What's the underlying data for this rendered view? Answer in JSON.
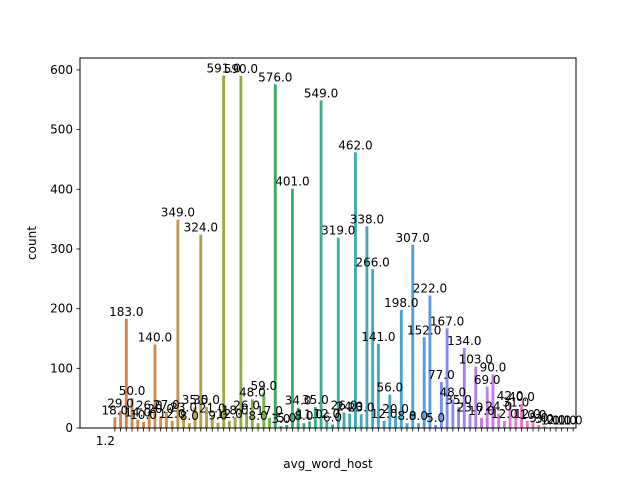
{
  "chart_data": {
    "type": "bar",
    "xlabel": "avg_word_host",
    "ylabel": "count",
    "ylim": [
      0,
      620
    ],
    "yticks": [
      0,
      100,
      200,
      300,
      400,
      500,
      600
    ],
    "x_first_tick_label": "1.2",
    "grid": false,
    "legend": "none",
    "bars": [
      {
        "value": 18.0,
        "label": "18.0",
        "color": "#df7b4f"
      },
      {
        "value": 29.0,
        "label": "29.0",
        "color": "#de7d4a"
      },
      {
        "value": 183.0,
        "label": "183.0",
        "color": "#d9804a"
      },
      {
        "value": 50.0,
        "label": "50.0",
        "color": "#d6834a"
      },
      {
        "value": 14.0,
        "label": "14.0",
        "color": "#d4874a"
      },
      {
        "value": 10.0,
        "label": "10.0",
        "color": "#d1894a"
      },
      {
        "value": 26.0,
        "label": "26.0",
        "color": "#ce8b49"
      },
      {
        "value": 140.0,
        "label": "140.0",
        "color": "#cc8e49"
      },
      {
        "value": 20.0,
        "label": "20.0",
        "color": "#c99049"
      },
      {
        "value": 27.0,
        "label": "27.0",
        "color": "#c69349"
      },
      {
        "value": 12.0,
        "label": "12.0",
        "color": "#c39548"
      },
      {
        "value": 349.0,
        "label": "349.0",
        "color": "#c29748"
      },
      {
        "value": 23.0,
        "label": "23.0",
        "color": "#bf9948"
      },
      {
        "value": 8.0,
        "label": "8.0",
        "color": "#bc9a48"
      },
      {
        "value": 35.0,
        "label": "35.0",
        "color": "#b99c47"
      },
      {
        "value": 324.0,
        "label": "324.0",
        "color": "#b59e47"
      },
      {
        "value": 35.0,
        "label": "35.0",
        "color": "#b2a047"
      },
      {
        "value": 21.0,
        "label": "21.0",
        "color": "#afa147"
      },
      {
        "value": 9.0,
        "label": "9.0",
        "color": "#aba247"
      },
      {
        "value": 591.0,
        "label": "591.0",
        "color": "#a3a446"
      },
      {
        "value": 12.0,
        "label": "12.0",
        "color": "#a0a646"
      },
      {
        "value": 18.0,
        "label": "18.0",
        "color": "#9ca846"
      },
      {
        "value": 590.0,
        "label": "590.0",
        "color": "#8fac45"
      },
      {
        "value": 26.0,
        "label": "26.0",
        "color": "#8bad45"
      },
      {
        "value": 48.0,
        "label": "48.0",
        "color": "#86ae45"
      },
      {
        "value": 8.0,
        "label": "8.0",
        "color": "#80af45"
      },
      {
        "value": 59.0,
        "label": "59.0",
        "color": "#79b145"
      },
      {
        "value": 17.0,
        "label": "17.0",
        "color": "#72b245"
      },
      {
        "value": 576.0,
        "label": "576.0",
        "color": "#3aac5f"
      },
      {
        "value": 3.0,
        "label": "3.0",
        "color": "#3aad66"
      },
      {
        "value": 5.0,
        "label": "5.0",
        "color": "#3aad6c"
      },
      {
        "value": 401.0,
        "label": "401.0",
        "color": "#3aad74"
      },
      {
        "value": 34.0,
        "label": "34.0",
        "color": "#3aad7a"
      },
      {
        "value": 8.0,
        "label": "8.0",
        "color": "#3aad80"
      },
      {
        "value": 11.0,
        "label": "11.0",
        "color": "#3aad86"
      },
      {
        "value": 35.0,
        "label": "35.0",
        "color": "#3bad8c"
      },
      {
        "value": 549.0,
        "label": "549.0",
        "color": "#3bad92"
      },
      {
        "value": 12.0,
        "label": "12.0",
        "color": "#3bad98"
      },
      {
        "value": 6.0,
        "label": "6.0",
        "color": "#3cae9d"
      },
      {
        "value": 319.0,
        "label": "319.0",
        "color": "#3cada1"
      },
      {
        "value": 26.0,
        "label": "26.0",
        "color": "#3dada5"
      },
      {
        "value": 24.0,
        "label": "24.0",
        "color": "#3eadaa"
      },
      {
        "value": 462.0,
        "label": "462.0",
        "color": "#3eadae"
      },
      {
        "value": 23.0,
        "label": "23.0",
        "color": "#3facb2"
      },
      {
        "value": 338.0,
        "label": "338.0",
        "color": "#40acb6"
      },
      {
        "value": 266.0,
        "label": "266.0",
        "color": "#41abba"
      },
      {
        "value": 141.0,
        "label": "141.0",
        "color": "#42aabe"
      },
      {
        "value": 12.0,
        "label": "12.0",
        "color": "#43a9c2"
      },
      {
        "value": 56.0,
        "label": "56.0",
        "color": "#44a8c6"
      },
      {
        "value": 20.0,
        "label": "20.0",
        "color": "#45a7ca"
      },
      {
        "value": 198.0,
        "label": "198.0",
        "color": "#47a5ce"
      },
      {
        "value": 8.0,
        "label": "8.0",
        "color": "#49a3d2"
      },
      {
        "value": 307.0,
        "label": "307.0",
        "color": "#4ba2d6"
      },
      {
        "value": 8.0,
        "label": "8.0",
        "color": "#4ea0da"
      },
      {
        "value": 152.0,
        "label": "152.0",
        "color": "#519ddf"
      },
      {
        "value": 222.0,
        "label": "222.0",
        "color": "#5a99e4"
      },
      {
        "value": 5.0,
        "label": "5.0",
        "color": "#6595e8"
      },
      {
        "value": 77.0,
        "label": "77.0",
        "color": "#7291ea"
      },
      {
        "value": 167.0,
        "label": "167.0",
        "color": "#7e8dec"
      },
      {
        "value": 48.0,
        "label": "48.0",
        "color": "#8a89ec"
      },
      {
        "value": 35.0,
        "label": "35.0",
        "color": "#9586ec"
      },
      {
        "value": 134.0,
        "label": "134.0",
        "color": "#9f83ec"
      },
      {
        "value": 23.0,
        "label": "23.0",
        "color": "#a881eb"
      },
      {
        "value": 103.0,
        "label": "103.0",
        "color": "#b17fea"
      },
      {
        "value": 17.0,
        "label": "17.0",
        "color": "#b97de9"
      },
      {
        "value": 69.0,
        "label": "69.0",
        "color": "#c27be8"
      },
      {
        "value": 90.0,
        "label": "90.0",
        "color": "#ca79e5"
      },
      {
        "value": 24.0,
        "label": "24.0",
        "color": "#d277e1"
      },
      {
        "value": 12.0,
        "label": "12.0",
        "color": "#da76da"
      },
      {
        "value": 42.0,
        "label": "42.0",
        "color": "#e176d2"
      },
      {
        "value": 31.0,
        "label": "31.0",
        "color": "#e677cb"
      },
      {
        "value": 40.0,
        "label": "40.0",
        "color": "#e978c4"
      },
      {
        "value": 12.0,
        "label": "12.0",
        "color": "#eb79bd"
      },
      {
        "value": 10.0,
        "label": "10.0",
        "color": "#ec7ab6"
      },
      {
        "value": 5.0,
        "label": "5.0",
        "color": "#ed7bae"
      },
      {
        "value": 3.0,
        "label": "3.0",
        "color": "#ee7ca6"
      },
      {
        "value": 1.0,
        "label": "1.0",
        "color": "#ee7d9e"
      },
      {
        "value": 2.0,
        "label": "2.0",
        "color": "#ef7e96"
      },
      {
        "value": 1.0,
        "label": "1.0",
        "color": "#ef7f8e"
      },
      {
        "value": 1.0,
        "label": "1.0",
        "color": "#ef8087"
      },
      {
        "value": 1.0,
        "label": "1.0",
        "color": "#ef8180"
      }
    ]
  }
}
